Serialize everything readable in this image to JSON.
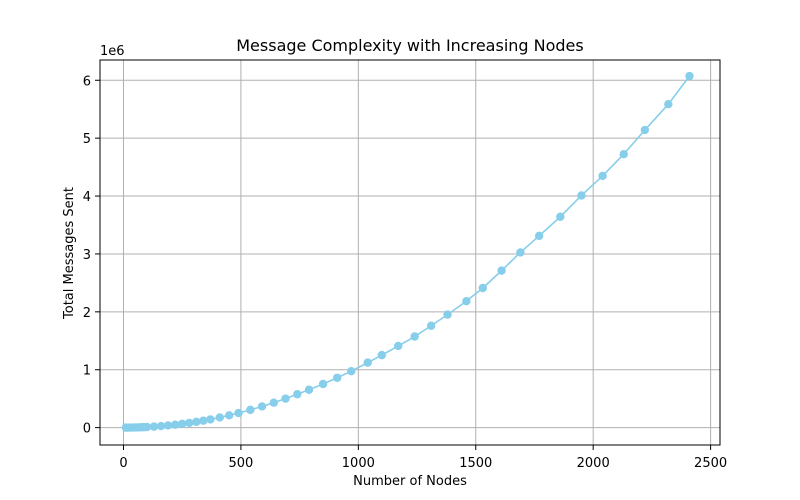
{
  "chart_data": {
    "type": "line",
    "title": "Message Complexity with Increasing Nodes",
    "xlabel": "Number of Nodes",
    "ylabel": "Total Messages Sent",
    "y_offset_label": "1e6",
    "xlim": [
      -100,
      2540
    ],
    "ylim": [
      -0.3,
      6.35
    ],
    "x_ticks": [
      0,
      500,
      1000,
      1500,
      2000,
      2500
    ],
    "y_ticks": [
      0,
      1,
      2,
      3,
      4,
      5,
      6
    ],
    "grid": true,
    "marker": "circle",
    "line_color": "#87CEEB",
    "series": [
      {
        "x": [
          10,
          20,
          30,
          40,
          50,
          60,
          70,
          80,
          90,
          100,
          130,
          160,
          190,
          220,
          250,
          280,
          310,
          340,
          370,
          410,
          450,
          490,
          540,
          590,
          640,
          690,
          740,
          790,
          850,
          910,
          970,
          1040,
          1100,
          1170,
          1240,
          1310,
          1380,
          1460,
          1530,
          1610,
          1690,
          1770,
          1860,
          1950,
          2040,
          2130,
          2220,
          2320,
          2410
        ],
        "y": [
          0.0001,
          0.0004,
          0.0009,
          0.0016,
          0.0026,
          0.0037,
          0.0051,
          0.0066,
          0.0084,
          0.0104,
          0.0176,
          0.0268,
          0.0374,
          0.0503,
          0.065,
          0.0815,
          0.0998,
          0.1201,
          0.1422,
          0.1757,
          0.2125,
          0.2522,
          0.3067,
          0.3658,
          0.4308,
          0.5005,
          0.5765,
          0.6542,
          0.7535,
          0.8611,
          0.9745,
          1.1228,
          1.2526,
          1.4112,
          1.574,
          1.7599,
          1.9522,
          2.1843,
          2.4118,
          2.712,
          3.0262,
          3.3126,
          3.6426,
          4.01,
          4.3472,
          4.7227,
          5.14,
          5.5864,
          6.0714
        ]
      }
    ]
  }
}
